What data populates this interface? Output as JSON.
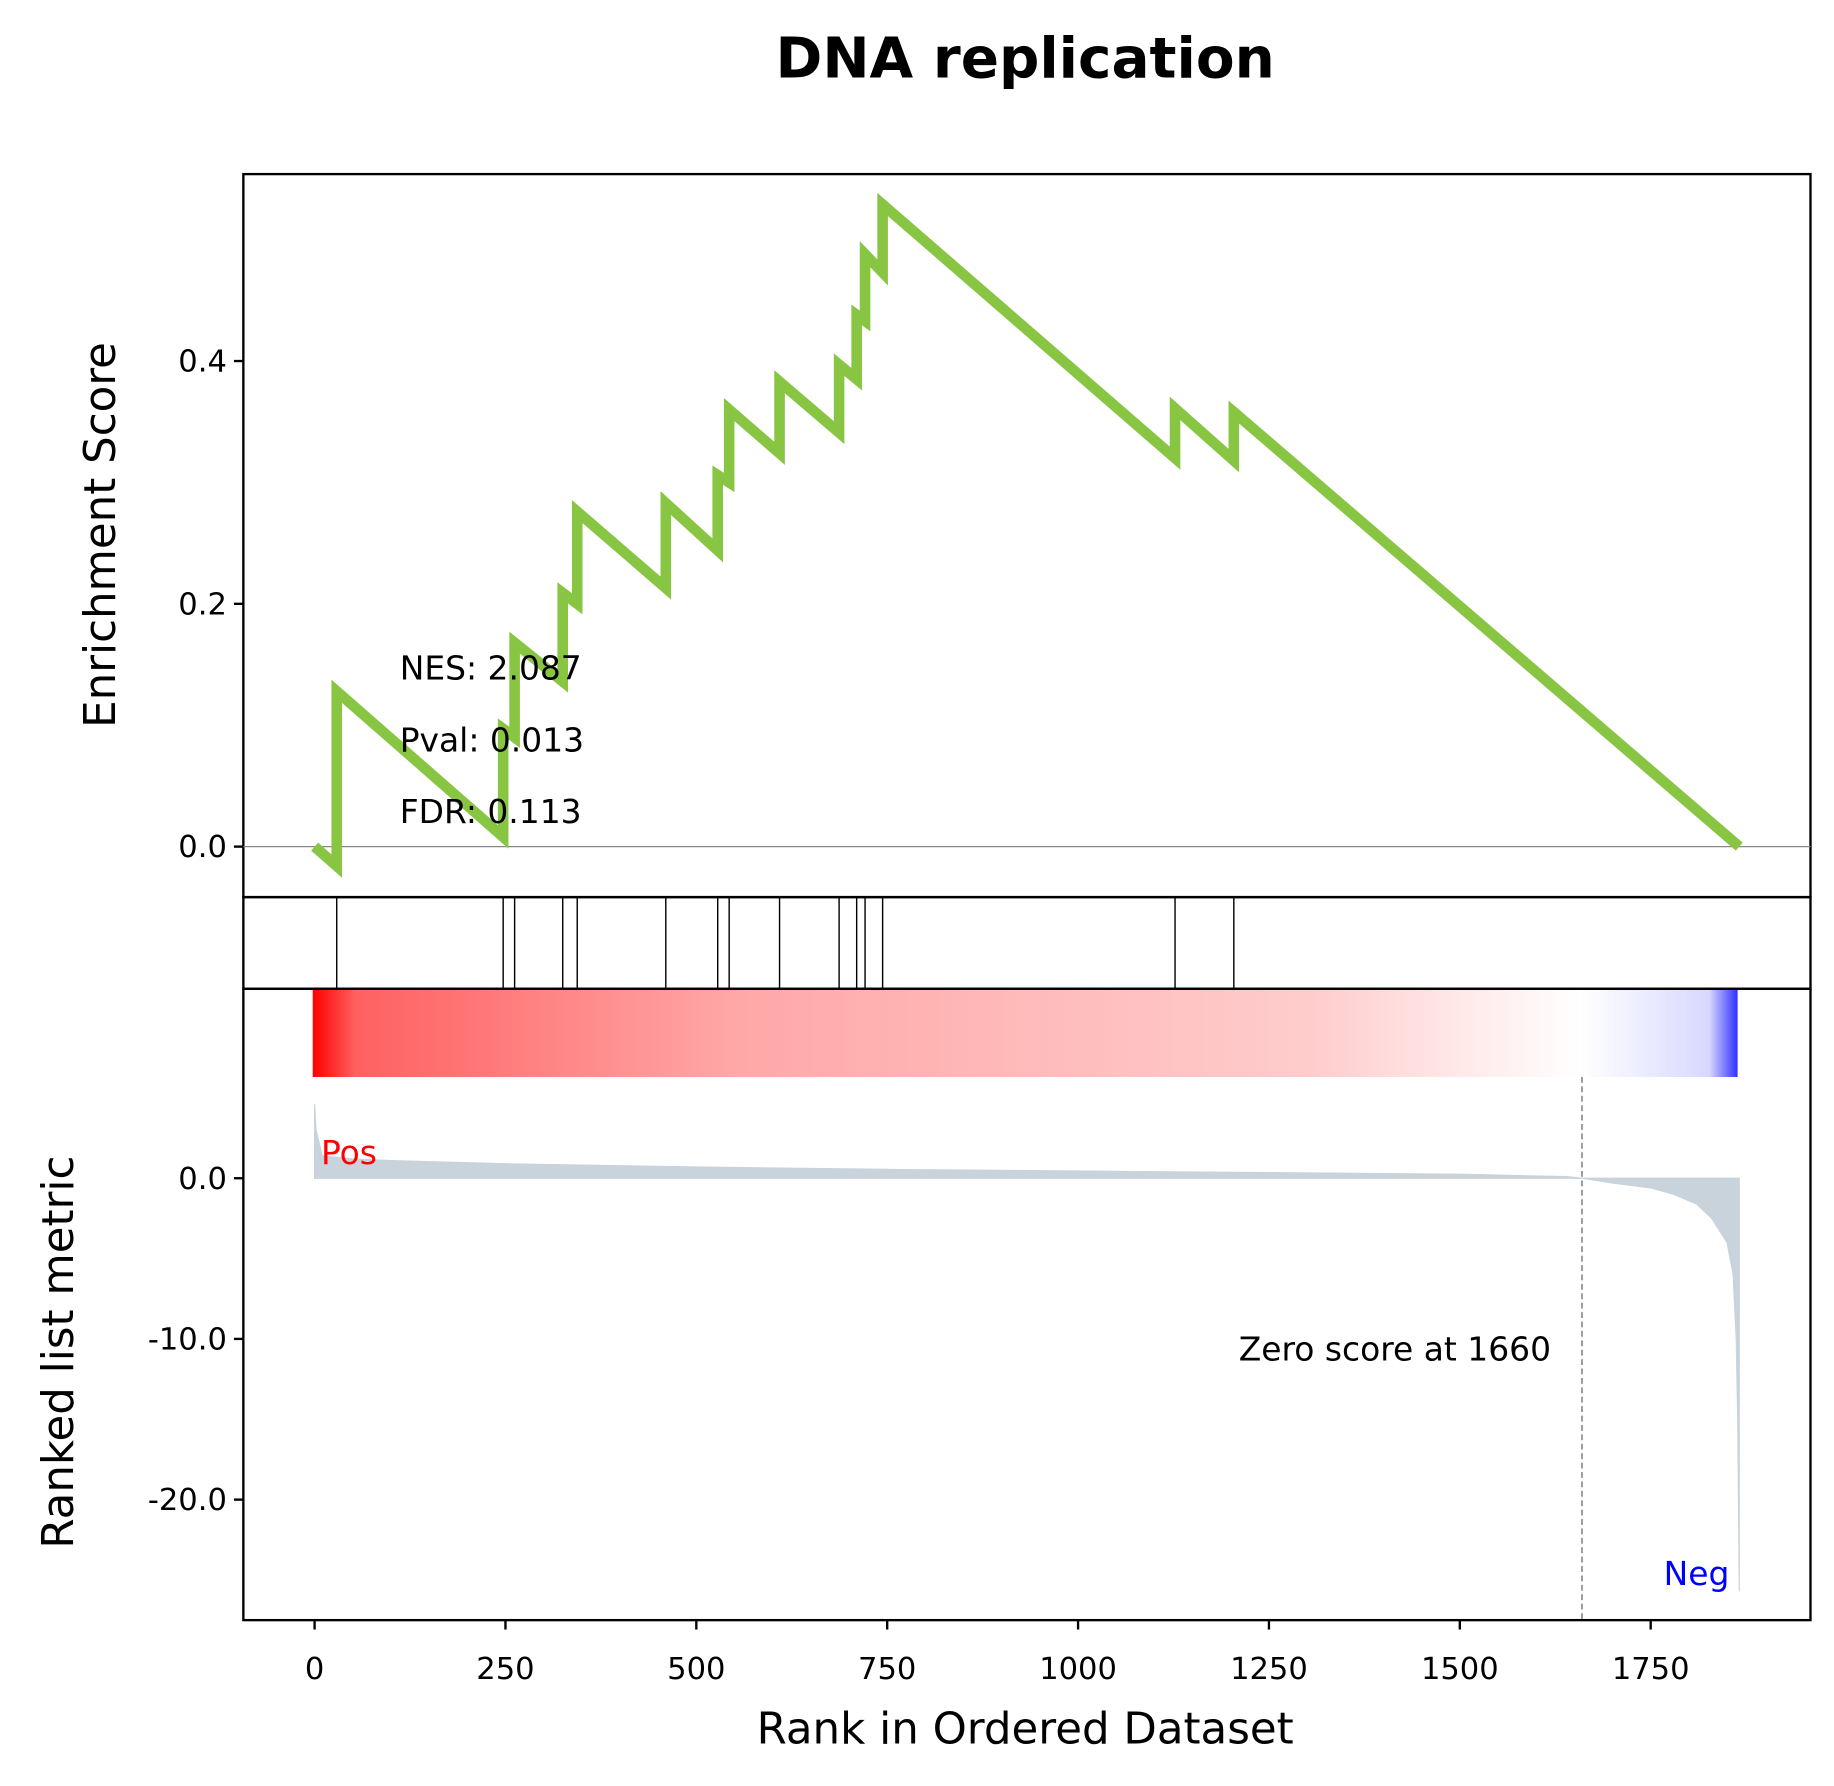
{
  "chart_data": [
    {
      "type": "line",
      "title": "DNA replication",
      "ylabel": "Enrichment Score",
      "xlim": [
        -93.3,
        1959.3
      ],
      "ylim": [
        -0.0416,
        0.554
      ],
      "yticks": [
        {
          "value": 0,
          "label": "0.0"
        },
        0.2,
        0.4
      ],
      "x": [
        0,
        29,
        29,
        247,
        247,
        262,
        262,
        325,
        325,
        344,
        344,
        460,
        460,
        528,
        528,
        543,
        543,
        609,
        609,
        687,
        687,
        710,
        710,
        721,
        721,
        744,
        744,
        1127,
        1127,
        1204,
        1204,
        1866
      ],
      "series": [
        {
          "name": "Enrichment Score",
          "color": "#88c542",
          "values": [
            0,
            -0.016,
            0.128,
            0.008,
            0.097,
            0.09,
            0.168,
            0.136,
            0.209,
            0.2,
            0.276,
            0.213,
            0.283,
            0.244,
            0.306,
            0.3,
            0.36,
            0.324,
            0.383,
            0.341,
            0.397,
            0.385,
            0.438,
            0.433,
            0.488,
            0.473,
            0.529,
            0.32,
            0.361,
            0.318,
            0.358,
            0
          ]
        }
      ],
      "hits": [
        29,
        247,
        262,
        325,
        344,
        460,
        528,
        543,
        609,
        687,
        710,
        721,
        744,
        1127,
        1204
      ],
      "annotations": [
        "NES: 2.087",
        "Pval: 0.013",
        "FDR: 0.113"
      ]
    },
    {
      "type": "area",
      "ylabel": "Ranked list metric",
      "xlabel": "Rank in Ordered Dataset",
      "xlim": [
        -93.3,
        1959.3
      ],
      "ylim": [
        -27.5,
        6.3
      ],
      "xticks": [
        0,
        250,
        500,
        750,
        1000,
        1250,
        1500,
        1750
      ],
      "yticks": [
        {
          "value": 0,
          "label": "0.0"
        },
        {
          "value": -10,
          "label": "-10.0"
        },
        {
          "value": -20,
          "label": "-20.0"
        }
      ],
      "x": [
        0,
        2,
        10,
        50,
        100,
        250,
        500,
        750,
        1000,
        1250,
        1500,
        1640,
        1660,
        1700,
        1750,
        1780,
        1810,
        1830,
        1850,
        1858,
        1862,
        1864,
        1866
      ],
      "series": [
        {
          "name": "Ranked list metric",
          "color": "#c9d3db",
          "values": [
            4.6,
            3.0,
            1.4,
            1.2,
            1.1,
            0.9,
            0.7,
            0.55,
            0.45,
            0.35,
            0.25,
            0.1,
            0,
            -0.3,
            -0.6,
            -1.0,
            -1.6,
            -2.5,
            -4,
            -6,
            -10,
            -15,
            -25.7
          ]
        }
      ],
      "zero_score_at": 1660,
      "zero_label": "Zero score at 1660",
      "pos_label": "Pos",
      "neg_label": "Neg"
    }
  ]
}
